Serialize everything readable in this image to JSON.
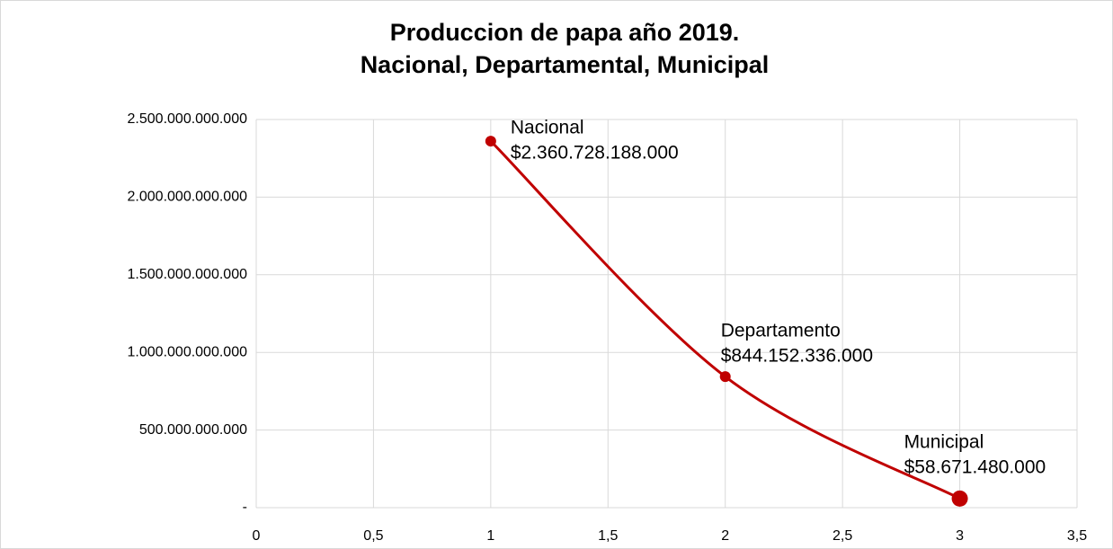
{
  "chart_data": {
    "type": "scatter",
    "title": [
      "Produccion de papa año 2019.",
      "Nacional, Departamental, Municipal"
    ],
    "x": [
      1,
      2,
      3
    ],
    "series": [
      {
        "name": null,
        "color": "#c00000",
        "values": [
          2360728188000,
          844152336000,
          58671480000
        ],
        "value_labels": [
          "$2.360.728.188.000",
          "$844.152.336.000",
          "$58.671.480.000"
        ],
        "point_labels": [
          "Nacional",
          "Departamento",
          "Municipal"
        ]
      }
    ],
    "smooth": true,
    "xlim": [
      0,
      3.5
    ],
    "xticks": [
      0,
      {
        "value": 0.5,
        "label": "0,5"
      },
      1,
      {
        "value": 1.5,
        "label": "1,5"
      },
      2,
      {
        "value": 2.5,
        "label": "2,5"
      },
      3,
      {
        "value": 3.5,
        "label": "3,5"
      }
    ],
    "ylim": [
      0,
      2500000000000
    ],
    "yticks": [
      {
        "value": 0,
        "label": "-"
      },
      {
        "value": 500000000000,
        "label": "500.000.000.000"
      },
      {
        "value": 1000000000000,
        "label": "1.000.000.000.000"
      },
      {
        "value": 1500000000000,
        "label": "1.500.000.000.000"
      },
      {
        "value": 2000000000000,
        "label": "2.000.000.000.000"
      },
      {
        "value": 2500000000000,
        "label": "2.500.000.000.000"
      }
    ],
    "grid": true
  }
}
